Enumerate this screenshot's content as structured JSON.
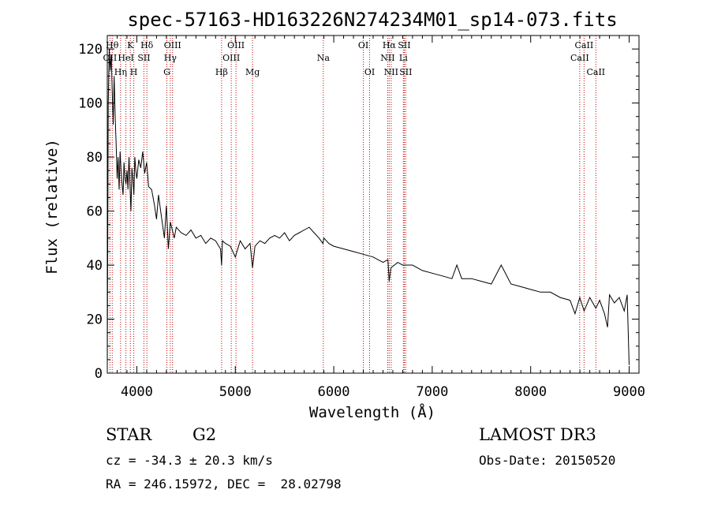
{
  "chart_data": {
    "type": "line",
    "title": "spec-57163-HD163226N274234M01_sp14-073.fits",
    "xlabel": "Wavelength (Å)",
    "ylabel": "Flux (relative)",
    "xlim": [
      3700,
      9100
    ],
    "ylim": [
      0,
      125
    ],
    "xticks": [
      4000,
      5000,
      6000,
      7000,
      8000,
      9000
    ],
    "yticks": [
      0,
      20,
      40,
      60,
      80,
      100,
      120
    ],
    "grid": false,
    "series": [
      {
        "color": "#000000",
        "x": [
          3700,
          3710,
          3720,
          3730,
          3740,
          3750,
          3760,
          3770,
          3780,
          3790,
          3800,
          3810,
          3820,
          3830,
          3840,
          3850,
          3860,
          3870,
          3880,
          3890,
          3900,
          3910,
          3920,
          3930,
          3940,
          3950,
          3960,
          3970,
          3980,
          3990,
          4000,
          4020,
          4040,
          4060,
          4080,
          4100,
          4120,
          4150,
          4180,
          4200,
          4220,
          4250,
          4280,
          4300,
          4320,
          4340,
          4360,
          4380,
          4400,
          4450,
          4500,
          4550,
          4600,
          4650,
          4700,
          4750,
          4800,
          4850,
          4861,
          4870,
          4900,
          4950,
          5000,
          5050,
          5100,
          5150,
          5175,
          5200,
          5250,
          5300,
          5350,
          5400,
          5450,
          5500,
          5550,
          5600,
          5650,
          5700,
          5750,
          5800,
          5850,
          5890,
          5900,
          5950,
          6000,
          6100,
          6200,
          6300,
          6400,
          6500,
          6550,
          6563,
          6580,
          6650,
          6700,
          6800,
          6900,
          7000,
          7100,
          7200,
          7250,
          7300,
          7400,
          7500,
          7600,
          7700,
          7800,
          7900,
          8000,
          8100,
          8200,
          8300,
          8400,
          8450,
          8498,
          8542,
          8600,
          8662,
          8700,
          8750,
          8780,
          8800,
          8850,
          8900,
          8950,
          8980,
          9000
        ],
        "values": [
          3,
          100,
          120,
          112,
          118,
          105,
          92,
          110,
          95,
          85,
          72,
          80,
          68,
          82,
          75,
          70,
          66,
          78,
          72,
          70,
          75,
          68,
          80,
          70,
          60,
          76,
          72,
          66,
          80,
          75,
          72,
          79,
          76,
          82,
          74,
          78,
          69,
          68,
          62,
          57,
          66,
          58,
          50,
          62,
          46,
          56,
          53,
          50,
          54,
          52,
          51,
          53,
          50,
          51,
          48,
          50,
          49,
          46,
          40,
          49,
          48,
          47,
          43,
          49,
          46,
          48,
          39,
          47,
          49,
          48,
          50,
          51,
          50,
          52,
          49,
          51,
          52,
          53,
          54,
          52,
          50,
          48,
          50,
          48,
          47,
          46,
          45,
          44,
          43,
          41,
          42,
          34,
          39,
          41,
          40,
          40,
          38,
          37,
          36,
          35,
          40,
          35,
          35,
          34,
          33,
          40,
          33,
          32,
          31,
          30,
          30,
          28,
          27,
          22,
          28,
          23,
          28,
          24,
          27,
          22,
          17,
          29,
          26,
          28,
          23,
          29,
          3
        ]
      }
    ],
    "lines": [
      {
        "label": "OII",
        "x": 3727,
        "row": 1
      },
      {
        "label": "Hθ",
        "x": 3750,
        "row": 0
      },
      {
        "label": "Hη",
        "x": 3835,
        "row": 2
      },
      {
        "label": "HeI",
        "x": 3889,
        "row": 1
      },
      {
        "label": "K",
        "x": 3934,
        "row": 0
      },
      {
        "label": "H",
        "x": 3969,
        "row": 2
      },
      {
        "label": "SII",
        "x": 4072,
        "row": 1
      },
      {
        "label": "Hδ",
        "x": 4102,
        "row": 0
      },
      {
        "label": "G",
        "x": 4305,
        "row": 2
      },
      {
        "label": "Hγ",
        "x": 4340,
        "row": 1
      },
      {
        "label": "OIII",
        "x": 4363,
        "row": 0
      },
      {
        "label": "Hβ",
        "x": 4861,
        "row": 2
      },
      {
        "label": "OIII",
        "x": 4959,
        "row": 1
      },
      {
        "label": "OIII",
        "x": 5007,
        "row": 0
      },
      {
        "label": "Mg",
        "x": 5175,
        "row": 2
      },
      {
        "label": "Na",
        "x": 5894,
        "row": 1
      },
      {
        "label": "OI",
        "x": 6300,
        "row": 0
      },
      {
        "label": "OI",
        "x": 6364,
        "row": 2
      },
      {
        "label": "NII",
        "x": 6548,
        "row": 1
      },
      {
        "label": "Hα",
        "x": 6563,
        "row": 0
      },
      {
        "label": "NII",
        "x": 6583,
        "row": 2
      },
      {
        "label": "Li",
        "x": 6707,
        "row": 1
      },
      {
        "label": "SII",
        "x": 6716,
        "row": 0
      },
      {
        "label": "SII",
        "x": 6731,
        "row": 2
      },
      {
        "label": "CaII",
        "x": 8498,
        "row": 1
      },
      {
        "label": "CaII",
        "x": 8542,
        "row": 0
      },
      {
        "label": "CaII",
        "x": 8662,
        "row": 2
      }
    ]
  },
  "info": {
    "object_class": "STAR",
    "subclass": "G2",
    "survey": "LAMOST DR3",
    "redshift": "cz = -34.3 ± 20.3 km/s",
    "obs_date": "Obs-Date: 20150520",
    "coords": "RA = 246.15972, DEC =  28.02798"
  }
}
